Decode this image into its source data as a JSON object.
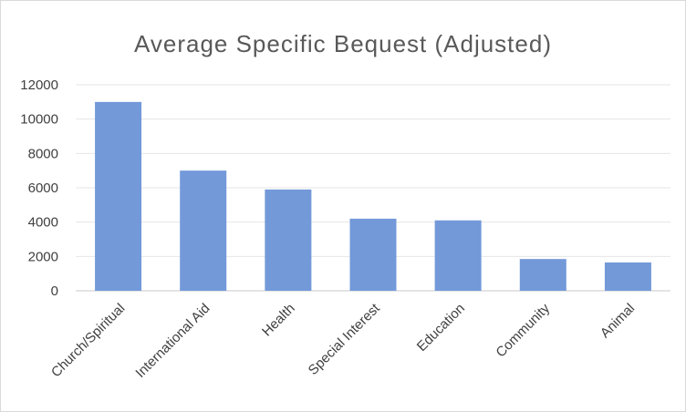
{
  "chart_data": {
    "type": "bar",
    "title": "Average Specific Bequest (Adjusted)",
    "categories": [
      "Church/Spiritual",
      "International Aid",
      "Health",
      "Special Interest",
      "Education",
      "Community",
      "Animal"
    ],
    "values": [
      11000,
      7000,
      5900,
      4200,
      4100,
      1850,
      1650
    ],
    "yticks": [
      "0",
      "2000",
      "4000",
      "6000",
      "8000",
      "10000",
      "12000"
    ],
    "ylim": [
      0,
      12000
    ],
    "grid": true,
    "legend": "none",
    "bar_color": "#7399d9",
    "grid_color": "#e6e6e6",
    "axis_color": "#c8c8c8"
  }
}
